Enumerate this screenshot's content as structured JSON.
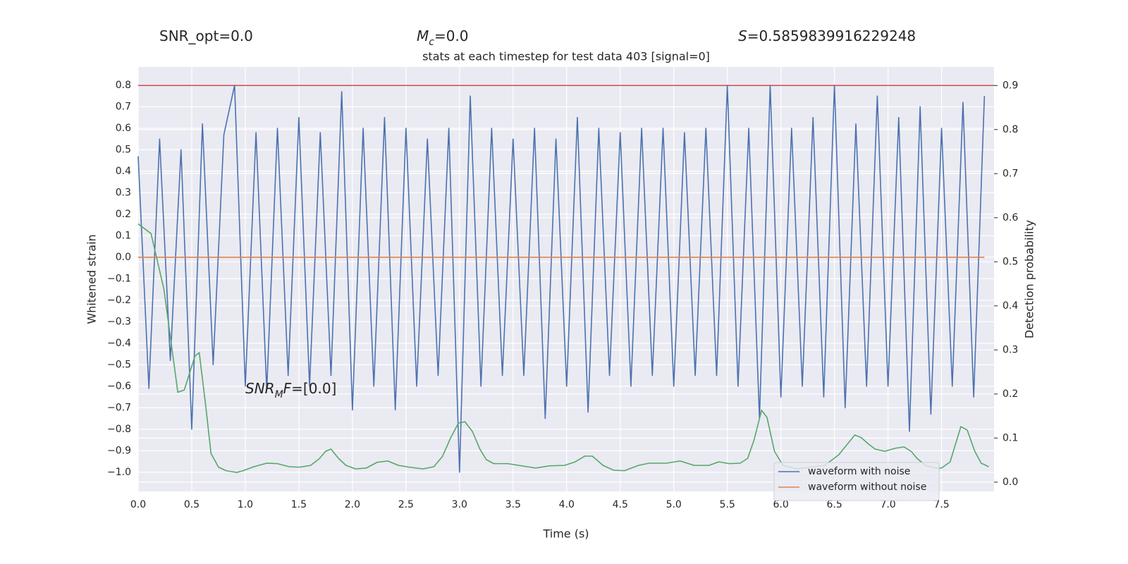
{
  "chart_data": {
    "type": "line",
    "title": "stats at each timestep for test data 403 [signal=0]",
    "annotations": [
      {
        "parts": [
          {
            "text": "SNR_opt=0.0"
          }
        ]
      },
      {
        "parts": [
          {
            "text": "M",
            "italic": true
          },
          {
            "text": "c",
            "italic": true,
            "sub": true
          },
          {
            "text": "=0.0"
          }
        ]
      },
      {
        "parts": [
          {
            "text": "S",
            "italic": true
          },
          {
            "text": "=0.5859839916229248"
          }
        ]
      },
      {
        "parts": [
          {
            "text": "SNR",
            "italic": true
          },
          {
            "text": "M",
            "italic": true,
            "sub": true
          },
          {
            "text": "F",
            "italic": true
          },
          {
            "text": "=[0.0]"
          }
        ]
      }
    ],
    "x_label": "Time (s)",
    "y_label": "Whitened strain",
    "y2_label": "Detection probability",
    "xlim": [
      0,
      7.99
    ],
    "ylim": [
      -1.089,
      0.885
    ],
    "y2lim": [
      -0.021,
      0.942
    ],
    "xticks": [
      {
        "value": 0,
        "label": "0.0"
      },
      0.5,
      {
        "value": 1,
        "label": "1.0"
      },
      1.5,
      {
        "value": 2,
        "label": "2.0"
      },
      2.5,
      {
        "value": 3,
        "label": "3.0"
      },
      3.5,
      {
        "value": 4,
        "label": "4.0"
      },
      4.5,
      {
        "value": 5,
        "label": "5.0"
      },
      5.5,
      {
        "value": 6,
        "label": "6.0"
      },
      6.5,
      {
        "value": 7,
        "label": "7.0"
      },
      7.5
    ],
    "yticks": [
      {
        "value": -1,
        "label": "−1.0"
      },
      {
        "value": -0.9,
        "label": "−0.9"
      },
      {
        "value": -0.8,
        "label": "−0.8"
      },
      {
        "value": -0.7,
        "label": "−0.7"
      },
      {
        "value": -0.6,
        "label": "−0.6"
      },
      {
        "value": -0.5,
        "label": "−0.5"
      },
      {
        "value": -0.4,
        "label": "−0.4"
      },
      {
        "value": -0.3,
        "label": "−0.3"
      },
      {
        "value": -0.2,
        "label": "−0.2"
      },
      {
        "value": -0.1,
        "label": "−0.1"
      },
      {
        "value": 0,
        "label": "0.0"
      },
      0.1,
      0.2,
      0.3,
      0.4,
      0.5,
      0.6,
      0.7,
      0.8
    ],
    "y2ticks": [
      {
        "value": 0,
        "label": "0.0"
      },
      0.1,
      0.2,
      0.3,
      0.4,
      0.5,
      0.6,
      0.7,
      0.8,
      0.9
    ],
    "grid": true,
    "legend": "lower right",
    "series": [
      {
        "name": "waveform with noise",
        "color": "#4c72b0",
        "x": [
          0,
          0.1,
          0.2,
          0.3,
          0.4,
          0.5,
          0.6,
          0.7,
          0.8,
          0.9,
          1,
          1.1,
          1.2,
          1.3,
          1.4,
          1.5,
          1.6,
          1.7,
          1.8,
          1.9,
          2,
          2.1,
          2.2,
          2.3,
          2.4,
          2.5,
          2.6,
          2.7,
          2.8,
          2.9,
          3,
          3.1,
          3.2,
          3.3,
          3.4,
          3.5,
          3.6,
          3.7,
          3.8,
          3.9,
          4,
          4.1,
          4.2,
          4.3,
          4.4,
          4.5,
          4.6,
          4.7,
          4.8,
          4.9,
          5,
          5.1,
          5.2,
          5.3,
          5.4,
          5.5,
          5.6,
          5.7,
          5.8,
          5.9,
          6,
          6.1,
          6.2,
          6.3,
          6.4,
          6.5,
          6.6,
          6.7,
          6.8,
          6.9,
          7,
          7.1,
          7.2,
          7.3,
          7.4,
          7.5,
          7.6,
          7.7,
          7.8,
          7.9
        ],
        "values": [
          0.47,
          -0.61,
          0.55,
          -0.48,
          0.5,
          -0.8,
          0.62,
          -0.5,
          0.57,
          0.8,
          -0.6,
          0.58,
          -0.62,
          0.6,
          -0.55,
          0.65,
          -0.6,
          0.58,
          -0.55,
          0.77,
          -0.71,
          0.6,
          -0.6,
          0.65,
          -0.71,
          0.6,
          -0.6,
          0.55,
          -0.55,
          0.6,
          -1.0,
          0.75,
          -0.6,
          0.6,
          -0.55,
          0.55,
          -0.55,
          0.6,
          -0.75,
          0.55,
          -0.6,
          0.65,
          -0.72,
          0.6,
          -0.55,
          0.58,
          -0.6,
          0.6,
          -0.55,
          0.6,
          -0.6,
          0.58,
          -0.55,
          0.6,
          -0.55,
          0.8,
          -0.6,
          0.6,
          -0.75,
          0.8,
          -0.65,
          0.6,
          -0.6,
          0.65,
          -0.65,
          0.8,
          -0.7,
          0.62,
          -0.6,
          0.75,
          -0.6,
          0.65,
          -0.81,
          0.7,
          -0.73,
          0.6,
          -0.6,
          0.72,
          -0.65,
          0.75
        ]
      },
      {
        "name": "waveform without noise",
        "color": "#dd8452",
        "x": [
          0,
          7.9
        ],
        "values": [
          0,
          0
        ]
      },
      {
        "color": "#55a868",
        "axis": "y2",
        "x": [
          0,
          0.12,
          0.24,
          0.37,
          0.43,
          0.53,
          0.57,
          0.63,
          0.68,
          0.75,
          0.82,
          0.92,
          0.98,
          1.08,
          1.2,
          1.3,
          1.41,
          1.51,
          1.61,
          1.69,
          1.75,
          1.8,
          1.87,
          1.94,
          2.03,
          2.13,
          2.23,
          2.33,
          2.43,
          2.53,
          2.66,
          2.76,
          2.84,
          2.92,
          2.99,
          3.05,
          3.12,
          3.19,
          3.25,
          3.32,
          3.45,
          3.58,
          3.71,
          3.84,
          3.98,
          4.08,
          4.17,
          4.24,
          4.34,
          4.44,
          4.54,
          4.67,
          4.77,
          4.93,
          5.06,
          5.19,
          5.33,
          5.42,
          5.52,
          5.62,
          5.69,
          5.75,
          5.82,
          5.87,
          5.94,
          6.02,
          6.15,
          6.28,
          6.41,
          6.54,
          6.63,
          6.69,
          6.75,
          6.82,
          6.88,
          6.97,
          7.07,
          7.15,
          7.22,
          7.27,
          7.35,
          7.44,
          7.5,
          7.58,
          7.63,
          7.68,
          7.74,
          7.81,
          7.87,
          7.94
        ],
        "values": [
          0.586,
          0.564,
          0.438,
          0.204,
          0.209,
          0.286,
          0.294,
          0.174,
          0.065,
          0.034,
          0.026,
          0.022,
          0.026,
          0.035,
          0.043,
          0.042,
          0.035,
          0.034,
          0.038,
          0.053,
          0.07,
          0.075,
          0.054,
          0.038,
          0.03,
          0.032,
          0.045,
          0.048,
          0.038,
          0.034,
          0.03,
          0.035,
          0.058,
          0.102,
          0.134,
          0.137,
          0.115,
          0.075,
          0.051,
          0.042,
          0.042,
          0.037,
          0.032,
          0.037,
          0.038,
          0.046,
          0.059,
          0.059,
          0.038,
          0.027,
          0.026,
          0.038,
          0.043,
          0.043,
          0.048,
          0.038,
          0.038,
          0.046,
          0.042,
          0.043,
          0.054,
          0.096,
          0.163,
          0.147,
          0.07,
          0.038,
          0.03,
          0.034,
          0.038,
          0.062,
          0.089,
          0.107,
          0.101,
          0.086,
          0.075,
          0.07,
          0.077,
          0.08,
          0.069,
          0.054,
          0.038,
          0.032,
          0.032,
          0.046,
          0.086,
          0.126,
          0.118,
          0.07,
          0.043,
          0.035
        ]
      }
    ],
    "hline": {
      "value": 0.9,
      "axis": "y2",
      "color": "#c44e52"
    }
  }
}
